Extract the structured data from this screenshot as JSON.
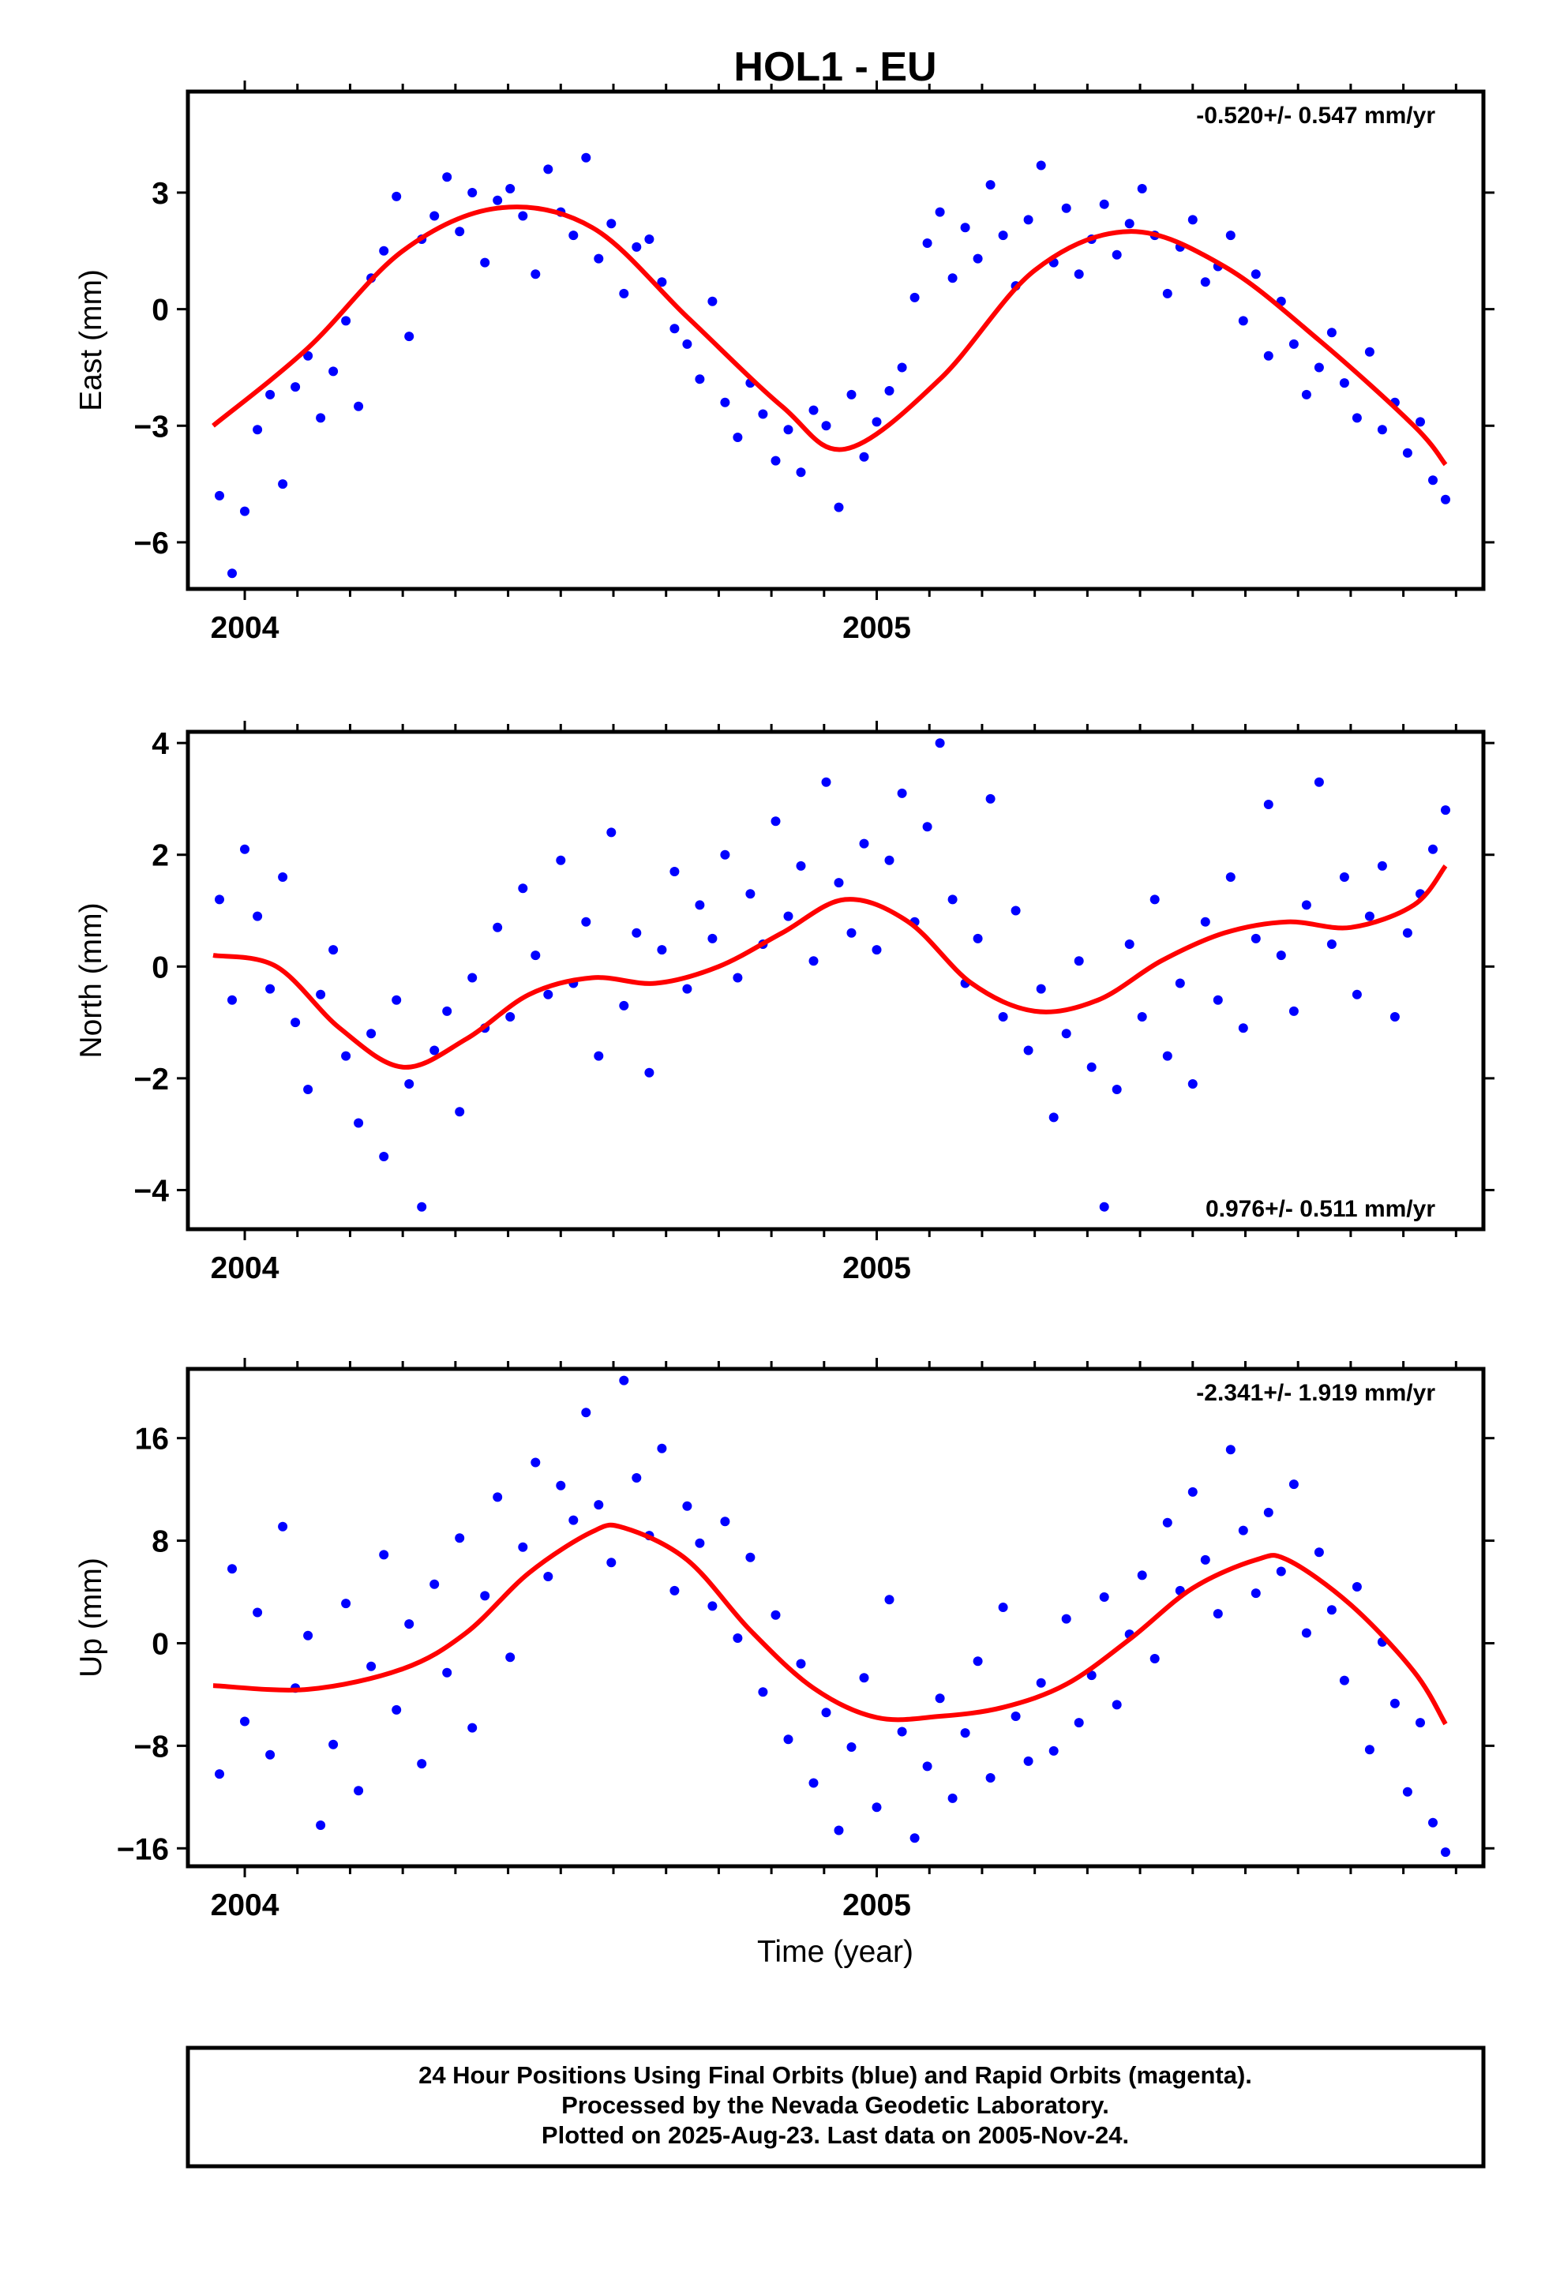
{
  "colors": {
    "points": "#0000ff",
    "fit": "#ff0000",
    "frame": "#000000",
    "background": "#ffffff"
  },
  "chart_data": {
    "title": "HOL1 - EU",
    "type": "scatter",
    "x_label": "Time (year)",
    "x_ticks": [
      "2004",
      "2005"
    ],
    "x_range": [
      2003.91,
      2005.96
    ],
    "panels": [
      {
        "id": "east",
        "ylabel": "East (mm)",
        "ylim": [
          -7.2,
          5.6
        ],
        "yticks": [
          3,
          0,
          -3,
          -6
        ],
        "ytick_labels": [
          "3",
          "0",
          "−3",
          "−6"
        ],
        "rate": "-0.520+/- 0.547 mm/yr",
        "rate_position": "top-right",
        "fit": {
          "x": [
            2003.95,
            2004.1,
            2004.25,
            2004.4,
            2004.55,
            2004.7,
            2004.85,
            2004.95,
            2005.1,
            2005.25,
            2005.4,
            2005.55,
            2005.7,
            2005.85,
            2005.9
          ],
          "y": [
            -3.0,
            -1.0,
            1.5,
            2.6,
            2.1,
            -0.2,
            -2.5,
            -3.6,
            -1.8,
            1.0,
            2.0,
            1.1,
            -0.8,
            -3.0,
            -4.0
          ]
        },
        "points": {
          "x": [
            2003.96,
            2003.98,
            2004.0,
            2004.02,
            2004.04,
            2004.06,
            2004.08,
            2004.1,
            2004.12,
            2004.14,
            2004.16,
            2004.18,
            2004.2,
            2004.22,
            2004.24,
            2004.26,
            2004.28,
            2004.3,
            2004.32,
            2004.34,
            2004.36,
            2004.38,
            2004.4,
            2004.42,
            2004.44,
            2004.46,
            2004.48,
            2004.5,
            2004.52,
            2004.54,
            2004.56,
            2004.58,
            2004.6,
            2004.62,
            2004.64,
            2004.66,
            2004.68,
            2004.7,
            2004.72,
            2004.74,
            2004.76,
            2004.78,
            2004.8,
            2004.82,
            2004.84,
            2004.86,
            2004.88,
            2004.9,
            2004.92,
            2004.94,
            2004.96,
            2004.98,
            2005.0,
            2005.02,
            2005.04,
            2005.06,
            2005.08,
            2005.1,
            2005.12,
            2005.14,
            2005.16,
            2005.18,
            2005.2,
            2005.22,
            2005.24,
            2005.26,
            2005.28,
            2005.3,
            2005.32,
            2005.34,
            2005.36,
            2005.38,
            2005.4,
            2005.42,
            2005.44,
            2005.46,
            2005.48,
            2005.5,
            2005.52,
            2005.54,
            2005.56,
            2005.58,
            2005.6,
            2005.62,
            2005.64,
            2005.66,
            2005.68,
            2005.7,
            2005.72,
            2005.74,
            2005.76,
            2005.78,
            2005.8,
            2005.82,
            2005.84,
            2005.86,
            2005.88,
            2005.9
          ],
          "y": [
            -4.8,
            -6.8,
            -5.2,
            -3.1,
            -2.2,
            -4.5,
            -2.0,
            -1.2,
            -2.8,
            -1.6,
            -0.3,
            -2.5,
            0.8,
            1.5,
            2.9,
            -0.7,
            1.8,
            2.4,
            3.4,
            2.0,
            3.0,
            1.2,
            2.8,
            3.1,
            2.4,
            0.9,
            3.6,
            2.5,
            1.9,
            3.9,
            1.3,
            2.2,
            0.4,
            1.6,
            1.8,
            0.7,
            -0.5,
            -0.9,
            -1.8,
            0.2,
            -2.4,
            -3.3,
            -1.9,
            -2.7,
            -3.9,
            -3.1,
            -4.2,
            -2.6,
            -3.0,
            -5.1,
            -2.2,
            -3.8,
            -2.9,
            -2.1,
            -1.5,
            0.3,
            1.7,
            2.5,
            0.8,
            2.1,
            1.3,
            3.2,
            1.9,
            0.6,
            2.3,
            3.7,
            1.2,
            2.6,
            0.9,
            1.8,
            2.7,
            1.4,
            2.2,
            3.1,
            1.9,
            0.4,
            1.6,
            2.3,
            0.7,
            1.1,
            1.9,
            -0.3,
            0.9,
            -1.2,
            0.2,
            -0.9,
            -2.2,
            -1.5,
            -0.6,
            -1.9,
            -2.8,
            -1.1,
            -3.1,
            -2.4,
            -3.7,
            -2.9,
            -4.4,
            -4.9
          ]
        }
      },
      {
        "id": "north",
        "ylabel": "North (mm)",
        "ylim": [
          -4.7,
          4.2
        ],
        "yticks": [
          4,
          2,
          0,
          -2,
          -4
        ],
        "ytick_labels": [
          "4",
          "2",
          "0",
          "−2",
          "−4"
        ],
        "rate": "0.976+/- 0.511 mm/yr",
        "rate_position": "bottom-right",
        "fit": {
          "x": [
            2003.95,
            2004.05,
            2004.15,
            2004.25,
            2004.35,
            2004.45,
            2004.55,
            2004.65,
            2004.75,
            2004.85,
            2004.95,
            2005.05,
            2005.15,
            2005.25,
            2005.35,
            2005.45,
            2005.55,
            2005.65,
            2005.75,
            2005.85,
            2005.9
          ],
          "y": [
            0.2,
            0.0,
            -1.1,
            -1.8,
            -1.3,
            -0.5,
            -0.2,
            -0.3,
            0.0,
            0.6,
            1.2,
            0.8,
            -0.3,
            -0.8,
            -0.6,
            0.1,
            0.6,
            0.8,
            0.7,
            1.1,
            1.8
          ]
        },
        "points": {
          "x": [
            2003.96,
            2003.98,
            2004.0,
            2004.02,
            2004.04,
            2004.06,
            2004.08,
            2004.1,
            2004.12,
            2004.14,
            2004.16,
            2004.18,
            2004.2,
            2004.22,
            2004.24,
            2004.26,
            2004.28,
            2004.3,
            2004.32,
            2004.34,
            2004.36,
            2004.38,
            2004.4,
            2004.42,
            2004.44,
            2004.46,
            2004.48,
            2004.5,
            2004.52,
            2004.54,
            2004.56,
            2004.58,
            2004.6,
            2004.62,
            2004.64,
            2004.66,
            2004.68,
            2004.7,
            2004.72,
            2004.74,
            2004.76,
            2004.78,
            2004.8,
            2004.82,
            2004.84,
            2004.86,
            2004.88,
            2004.9,
            2004.92,
            2004.94,
            2004.96,
            2004.98,
            2005.0,
            2005.02,
            2005.04,
            2005.06,
            2005.08,
            2005.1,
            2005.12,
            2005.14,
            2005.16,
            2005.18,
            2005.2,
            2005.22,
            2005.24,
            2005.26,
            2005.28,
            2005.3,
            2005.32,
            2005.34,
            2005.36,
            2005.38,
            2005.4,
            2005.42,
            2005.44,
            2005.46,
            2005.48,
            2005.5,
            2005.52,
            2005.54,
            2005.56,
            2005.58,
            2005.6,
            2005.62,
            2005.64,
            2005.66,
            2005.68,
            2005.7,
            2005.72,
            2005.74,
            2005.76,
            2005.78,
            2005.8,
            2005.82,
            2005.84,
            2005.86,
            2005.88,
            2005.9
          ],
          "y": [
            1.2,
            -0.6,
            2.1,
            0.9,
            -0.4,
            1.6,
            -1.0,
            -2.2,
            -0.5,
            0.3,
            -1.6,
            -2.8,
            -1.2,
            -3.4,
            -0.6,
            -2.1,
            -4.3,
            -1.5,
            -0.8,
            -2.6,
            -0.2,
            -1.1,
            0.7,
            -0.9,
            1.4,
            0.2,
            -0.5,
            1.9,
            -0.3,
            0.8,
            -1.6,
            2.4,
            -0.7,
            0.6,
            -1.9,
            0.3,
            1.7,
            -0.4,
            1.1,
            0.5,
            2.0,
            -0.2,
            1.3,
            0.4,
            2.6,
            0.9,
            1.8,
            0.1,
            3.3,
            1.5,
            0.6,
            2.2,
            0.3,
            1.9,
            3.1,
            0.8,
            2.5,
            4.0,
            1.2,
            -0.3,
            0.5,
            3.0,
            -0.9,
            1.0,
            -1.5,
            -0.4,
            -2.7,
            -1.2,
            0.1,
            -1.8,
            -4.3,
            -2.2,
            0.4,
            -0.9,
            1.2,
            -1.6,
            -0.3,
            -2.1,
            0.8,
            -0.6,
            1.6,
            -1.1,
            0.5,
            2.9,
            0.2,
            -0.8,
            1.1,
            3.3,
            0.4,
            1.6,
            -0.5,
            0.9,
            1.8,
            -0.9,
            0.6,
            1.3,
            2.1,
            2.8
          ]
        }
      },
      {
        "id": "up",
        "ylabel": "Up (mm)",
        "ylim": [
          -17.4,
          21.4
        ],
        "yticks": [
          16,
          8,
          0,
          -8,
          -16
        ],
        "ytick_labels": [
          "16",
          "8",
          "0",
          "−8",
          "−16"
        ],
        "rate": "-2.341+/- 1.919 mm/yr",
        "rate_position": "top-right",
        "fit": {
          "x": [
            2003.95,
            2004.1,
            2004.25,
            2004.35,
            2004.45,
            2004.55,
            2004.6,
            2004.7,
            2004.8,
            2004.9,
            2005.0,
            2005.1,
            2005.2,
            2005.3,
            2005.4,
            2005.5,
            2005.6,
            2005.65,
            2005.75,
            2005.85,
            2005.9
          ],
          "y": [
            -3.3,
            -3.6,
            -2.0,
            0.8,
            5.5,
            8.7,
            9.0,
            6.5,
            1.0,
            -3.5,
            -5.8,
            -5.7,
            -5.0,
            -3.2,
            0.3,
            4.3,
            6.5,
            6.5,
            3.0,
            -2.2,
            -6.3
          ]
        },
        "points": {
          "x": [
            2003.96,
            2003.98,
            2004.0,
            2004.02,
            2004.04,
            2004.06,
            2004.08,
            2004.1,
            2004.12,
            2004.14,
            2004.16,
            2004.18,
            2004.2,
            2004.22,
            2004.24,
            2004.26,
            2004.28,
            2004.3,
            2004.32,
            2004.34,
            2004.36,
            2004.38,
            2004.4,
            2004.42,
            2004.44,
            2004.46,
            2004.48,
            2004.5,
            2004.52,
            2004.54,
            2004.56,
            2004.58,
            2004.6,
            2004.62,
            2004.64,
            2004.66,
            2004.68,
            2004.7,
            2004.72,
            2004.74,
            2004.76,
            2004.78,
            2004.8,
            2004.82,
            2004.84,
            2004.86,
            2004.88,
            2004.9,
            2004.92,
            2004.94,
            2004.96,
            2004.98,
            2005.0,
            2005.02,
            2005.04,
            2005.06,
            2005.08,
            2005.1,
            2005.12,
            2005.14,
            2005.16,
            2005.18,
            2005.2,
            2005.22,
            2005.24,
            2005.26,
            2005.28,
            2005.3,
            2005.32,
            2005.34,
            2005.36,
            2005.38,
            2005.4,
            2005.42,
            2005.44,
            2005.46,
            2005.48,
            2005.5,
            2005.52,
            2005.54,
            2005.56,
            2005.58,
            2005.6,
            2005.62,
            2005.64,
            2005.66,
            2005.68,
            2005.7,
            2005.72,
            2005.74,
            2005.76,
            2005.78,
            2005.8,
            2005.82,
            2005.84,
            2005.86,
            2005.88,
            2005.9
          ],
          "y": [
            -10.2,
            5.8,
            -6.1,
            2.4,
            -8.7,
            9.1,
            -3.5,
            0.6,
            -14.2,
            -7.9,
            3.1,
            -11.5,
            -1.8,
            6.9,
            -5.2,
            1.5,
            -9.4,
            4.6,
            -2.3,
            8.2,
            -6.6,
            3.7,
            11.4,
            -1.1,
            7.5,
            14.1,
            5.2,
            12.3,
            9.6,
            18.0,
            10.8,
            6.3,
            20.5,
            12.9,
            8.4,
            15.2,
            4.1,
            10.7,
            7.8,
            2.9,
            9.5,
            0.4,
            6.7,
            -3.8,
            2.2,
            -7.5,
            -1.6,
            -10.9,
            -5.4,
            -14.6,
            -8.1,
            -2.7,
            -12.8,
            3.4,
            -6.9,
            -15.2,
            -9.6,
            -4.3,
            -12.1,
            -7.0,
            -1.4,
            -10.5,
            2.8,
            -5.7,
            -9.2,
            -3.1,
            -8.4,
            1.9,
            -6.2,
            -2.5,
            3.6,
            -4.8,
            0.7,
            5.3,
            -1.2,
            9.4,
            4.1,
            11.8,
            6.5,
            2.3,
            15.1,
            8.8,
            3.9,
            10.2,
            5.6,
            12.4,
            0.8,
            7.1,
            2.6,
            -2.9,
            4.4,
            -8.3,
            0.1,
            -4.7,
            -11.6,
            -6.2,
            -14.0,
            -16.3
          ]
        }
      }
    ]
  },
  "footer": {
    "line1": "24 Hour Positions Using Final Orbits (blue) and Rapid Orbits (magenta).",
    "line2": "Processed by the Nevada Geodetic Laboratory.",
    "line3": "Plotted on 2025-Aug-23. Last data on 2005-Nov-24."
  }
}
